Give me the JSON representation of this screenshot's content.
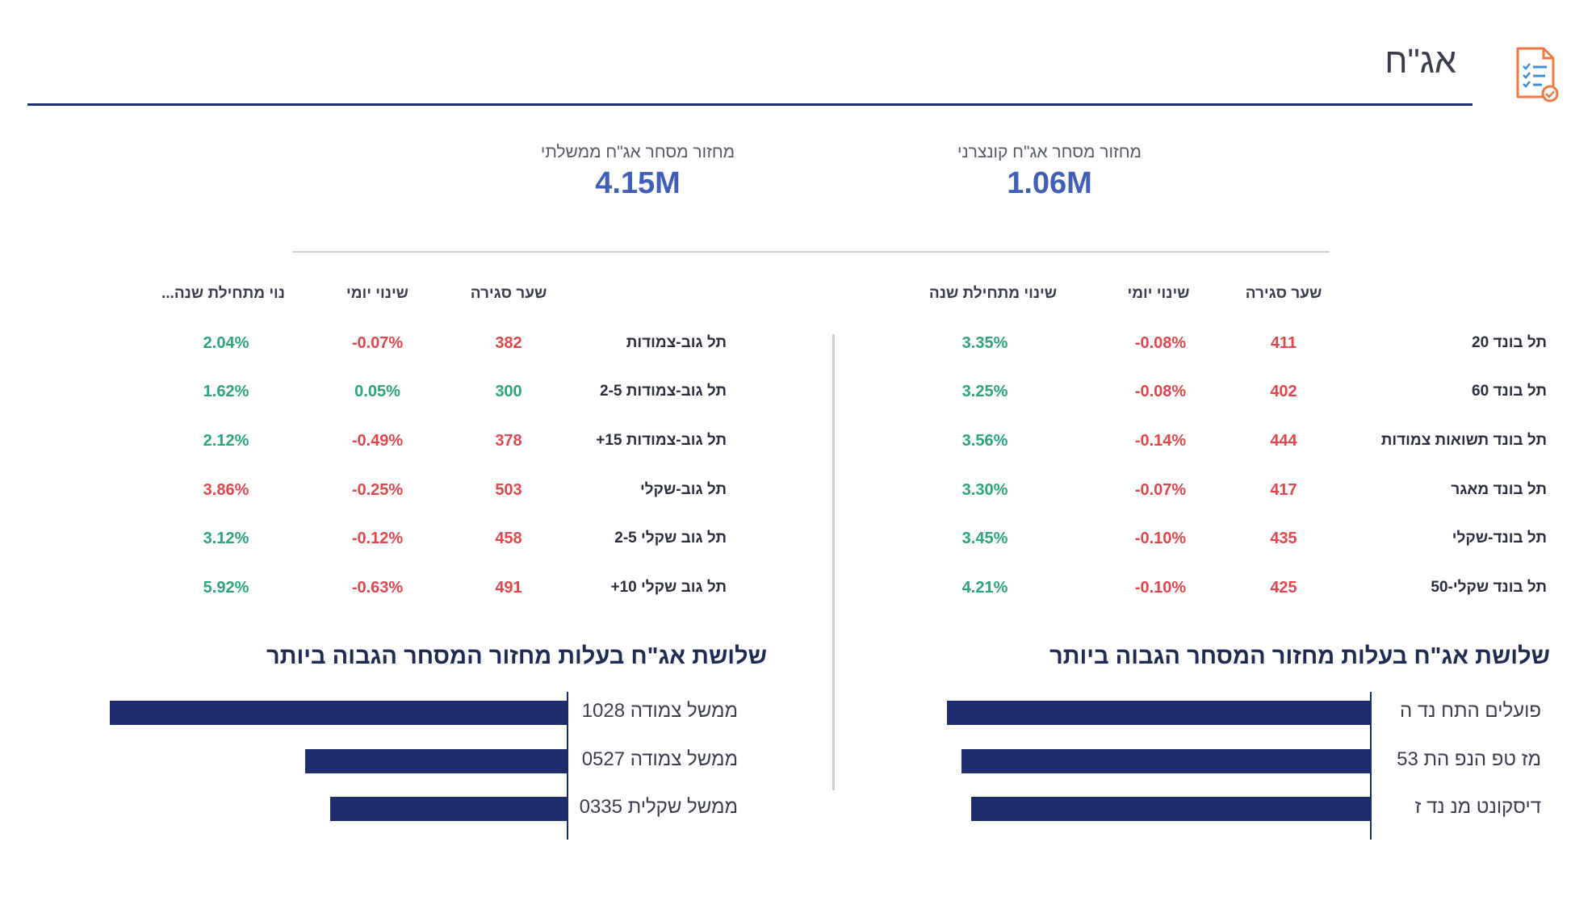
{
  "header": {
    "title": "אג\"ח",
    "icon": "report-checklist-icon"
  },
  "kpis": {
    "right": {
      "label": "מחזור מסחר אג\"ח קונצרני",
      "value": "1.06M"
    },
    "left": {
      "label": "מחזור מסחר אג\"ח ממשלתי",
      "value": "4.15M"
    }
  },
  "colors": {
    "positive": "#2aa57d",
    "negative": "#e0474c",
    "kpi_value": "#3f5fb8",
    "bar": "#1d2d6d",
    "rule": "#1f2e6e"
  },
  "corporate_table": {
    "headers": {
      "close": "שער סגירה",
      "daily": "שינוי יומי",
      "ytd": "שינוי מתחילת שנה"
    },
    "rows": [
      {
        "name": "תל בונד 20",
        "close": "411",
        "daily": "-0.08%",
        "ytd": "3.35%"
      },
      {
        "name": "תל בונד 60",
        "close": "402",
        "daily": "-0.08%",
        "ytd": "3.25%"
      },
      {
        "name": "תל בונד תשואות צמודות",
        "close": "444",
        "daily": "-0.14%",
        "ytd": "3.56%"
      },
      {
        "name": "תל בונד מאגר",
        "close": "417",
        "daily": "-0.07%",
        "ytd": "3.30%"
      },
      {
        "name": "תל בונד-שקלי",
        "close": "435",
        "daily": "-0.10%",
        "ytd": "3.45%"
      },
      {
        "name": "תל בונד שקלי-50",
        "close": "425",
        "daily": "-0.10%",
        "ytd": "4.21%"
      }
    ]
  },
  "government_table": {
    "headers": {
      "close": "שער סגירה",
      "daily": "שינוי יומי",
      "ytd": "שינוי מתחילת שנה"
    },
    "rows": [
      {
        "name": "תל גוב-צמודות",
        "close": "382",
        "daily": "-0.07%",
        "ytd": "2.04%"
      },
      {
        "name": "תל גוב-צמודות 2-5",
        "close": "300",
        "daily": "0.05%",
        "ytd": "1.62%"
      },
      {
        "name": "תל גוב-צמודות 15+",
        "close": "378",
        "daily": "-0.49%",
        "ytd": "2.12%"
      },
      {
        "name": "תל גוב-שקלי",
        "close": "503",
        "daily": "-0.25%",
        "ytd": "3.86%"
      },
      {
        "name": "תל גוב שקלי 2-5",
        "close": "458",
        "daily": "-0.12%",
        "ytd": "3.12%"
      },
      {
        "name": "תל גוב שקלי 10+",
        "close": "491",
        "daily": "-0.63%",
        "ytd": "5.92%"
      }
    ]
  },
  "chart_data": [
    {
      "type": "bar",
      "title": "שלושת אג\"ח בעלות מחזור המסחר הגבוה ביותר",
      "categories": [
        "פועלים התח נד ה",
        "מז טפ הנפ הת 53",
        "דיסקונט מנ נד ז"
      ],
      "values": [
        1.0,
        0.965,
        0.943
      ]
    },
    {
      "type": "bar",
      "title": "שלושת אג\"ח בעלות מחזור המסחר הגבוה ביותר",
      "categories": [
        "ממשל צמודה 1028",
        "ממשל צמודה 0527",
        "ממשל שקלית 0335"
      ],
      "values": [
        1.0,
        0.572,
        0.517
      ]
    }
  ]
}
